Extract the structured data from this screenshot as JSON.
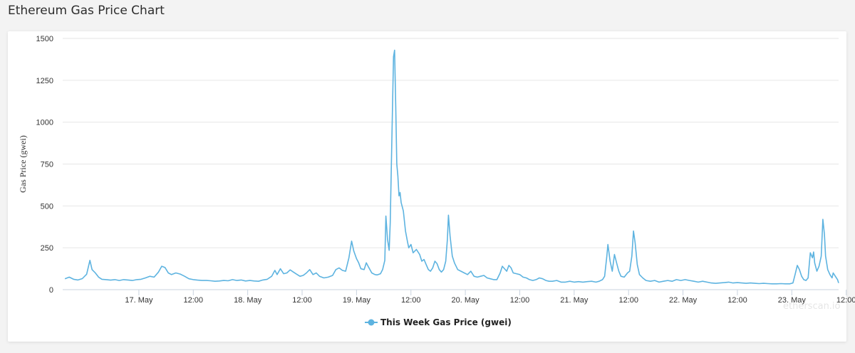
{
  "page": {
    "title": "Ethereum Gas Price Chart"
  },
  "watermark": "etherscan.io",
  "chart_data": {
    "type": "line",
    "title": "Ethereum Gas Price Chart",
    "xlabel": "",
    "ylabel": "Gas Price (gwei)",
    "ylim": [
      0,
      1500
    ],
    "y_ticks": [
      0,
      250,
      500,
      750,
      1000,
      1250,
      1500
    ],
    "x_range_days": [
      16.3,
      23.43
    ],
    "x_ticks": [
      {
        "pos": 17.0,
        "label": "17. May"
      },
      {
        "pos": 17.5,
        "label": "12:00"
      },
      {
        "pos": 18.0,
        "label": "18. May"
      },
      {
        "pos": 18.5,
        "label": "12:00"
      },
      {
        "pos": 19.0,
        "label": "19. May"
      },
      {
        "pos": 19.5,
        "label": "12:00"
      },
      {
        "pos": 20.0,
        "label": "20. May"
      },
      {
        "pos": 20.5,
        "label": "12:00"
      },
      {
        "pos": 21.0,
        "label": "21. May"
      },
      {
        "pos": 21.5,
        "label": "12:00"
      },
      {
        "pos": 22.0,
        "label": "22. May"
      },
      {
        "pos": 22.5,
        "label": "12:00"
      },
      {
        "pos": 23.0,
        "label": "23. May"
      },
      {
        "pos": 23.5,
        "label": "12:00"
      }
    ],
    "grid": "horizontal",
    "legend_position": "bottom-center",
    "series": [
      {
        "name": "This Week Gas Price (gwei)",
        "color": "#5db3e0",
        "points": [
          [
            16.32,
            65
          ],
          [
            16.36,
            75
          ],
          [
            16.4,
            62
          ],
          [
            16.44,
            58
          ],
          [
            16.48,
            66
          ],
          [
            16.52,
            92
          ],
          [
            16.55,
            175
          ],
          [
            16.57,
            120
          ],
          [
            16.6,
            100
          ],
          [
            16.63,
            75
          ],
          [
            16.66,
            62
          ],
          [
            16.7,
            60
          ],
          [
            16.74,
            57
          ],
          [
            16.78,
            60
          ],
          [
            16.82,
            55
          ],
          [
            16.86,
            60
          ],
          [
            16.9,
            58
          ],
          [
            16.94,
            55
          ],
          [
            16.98,
            60
          ],
          [
            17.02,
            62
          ],
          [
            17.06,
            70
          ],
          [
            17.1,
            80
          ],
          [
            17.14,
            75
          ],
          [
            17.18,
            105
          ],
          [
            17.21,
            140
          ],
          [
            17.24,
            132
          ],
          [
            17.27,
            100
          ],
          [
            17.3,
            90
          ],
          [
            17.34,
            100
          ],
          [
            17.38,
            93
          ],
          [
            17.42,
            80
          ],
          [
            17.46,
            65
          ],
          [
            17.5,
            60
          ],
          [
            17.54,
            57
          ],
          [
            17.58,
            55
          ],
          [
            17.62,
            55
          ],
          [
            17.66,
            53
          ],
          [
            17.7,
            50
          ],
          [
            17.74,
            52
          ],
          [
            17.78,
            55
          ],
          [
            17.82,
            53
          ],
          [
            17.86,
            60
          ],
          [
            17.9,
            55
          ],
          [
            17.94,
            58
          ],
          [
            17.98,
            52
          ],
          [
            18.02,
            55
          ],
          [
            18.06,
            52
          ],
          [
            18.1,
            50
          ],
          [
            18.14,
            58
          ],
          [
            18.18,
            62
          ],
          [
            18.22,
            80
          ],
          [
            18.25,
            115
          ],
          [
            18.27,
            90
          ],
          [
            18.3,
            125
          ],
          [
            18.33,
            95
          ],
          [
            18.36,
            100
          ],
          [
            18.39,
            118
          ],
          [
            18.42,
            105
          ],
          [
            18.45,
            92
          ],
          [
            18.48,
            80
          ],
          [
            18.51,
            85
          ],
          [
            18.54,
            100
          ],
          [
            18.57,
            120
          ],
          [
            18.6,
            90
          ],
          [
            18.63,
            100
          ],
          [
            18.66,
            80
          ],
          [
            18.7,
            70
          ],
          [
            18.74,
            75
          ],
          [
            18.78,
            85
          ],
          [
            18.81,
            120
          ],
          [
            18.84,
            130
          ],
          [
            18.87,
            115
          ],
          [
            18.9,
            110
          ],
          [
            18.93,
            190
          ],
          [
            18.955,
            290
          ],
          [
            18.975,
            230
          ],
          [
            19.0,
            185
          ],
          [
            19.02,
            160
          ],
          [
            19.04,
            125
          ],
          [
            19.07,
            120
          ],
          [
            19.09,
            160
          ],
          [
            19.11,
            135
          ],
          [
            19.14,
            100
          ],
          [
            19.17,
            90
          ],
          [
            19.19,
            88
          ],
          [
            19.22,
            95
          ],
          [
            19.24,
            120
          ],
          [
            19.26,
            175
          ],
          [
            19.27,
            440
          ],
          [
            19.285,
            300
          ],
          [
            19.3,
            235
          ],
          [
            19.31,
            400
          ],
          [
            19.325,
            900
          ],
          [
            19.34,
            1390
          ],
          [
            19.35,
            1430
          ],
          [
            19.36,
            1100
          ],
          [
            19.37,
            750
          ],
          [
            19.38,
            680
          ],
          [
            19.39,
            560
          ],
          [
            19.4,
            580
          ],
          [
            19.41,
            520
          ],
          [
            19.43,
            470
          ],
          [
            19.45,
            350
          ],
          [
            19.47,
            280
          ],
          [
            19.48,
            250
          ],
          [
            19.5,
            270
          ],
          [
            19.52,
            220
          ],
          [
            19.55,
            240
          ],
          [
            19.58,
            210
          ],
          [
            19.6,
            170
          ],
          [
            19.62,
            180
          ],
          [
            19.64,
            150
          ],
          [
            19.66,
            120
          ],
          [
            19.68,
            110
          ],
          [
            19.7,
            130
          ],
          [
            19.72,
            170
          ],
          [
            19.74,
            155
          ],
          [
            19.76,
            120
          ],
          [
            19.78,
            105
          ],
          [
            19.8,
            120
          ],
          [
            19.82,
            170
          ],
          [
            19.835,
            300
          ],
          [
            19.845,
            445
          ],
          [
            19.86,
            320
          ],
          [
            19.88,
            200
          ],
          [
            19.9,
            160
          ],
          [
            19.93,
            120
          ],
          [
            19.96,
            110
          ],
          [
            19.99,
            100
          ],
          [
            20.02,
            90
          ],
          [
            20.05,
            110
          ],
          [
            20.08,
            80
          ],
          [
            20.11,
            75
          ],
          [
            20.14,
            80
          ],
          [
            20.17,
            85
          ],
          [
            20.2,
            70
          ],
          [
            20.23,
            65
          ],
          [
            20.26,
            60
          ],
          [
            20.29,
            60
          ],
          [
            20.32,
            100
          ],
          [
            20.34,
            140
          ],
          [
            20.36,
            125
          ],
          [
            20.38,
            110
          ],
          [
            20.4,
            145
          ],
          [
            20.42,
            130
          ],
          [
            20.44,
            100
          ],
          [
            20.47,
            95
          ],
          [
            20.5,
            90
          ],
          [
            20.53,
            75
          ],
          [
            20.56,
            70
          ],
          [
            20.59,
            60
          ],
          [
            20.62,
            55
          ],
          [
            20.65,
            60
          ],
          [
            20.68,
            70
          ],
          [
            20.71,
            65
          ],
          [
            20.74,
            55
          ],
          [
            20.77,
            50
          ],
          [
            20.8,
            50
          ],
          [
            20.84,
            55
          ],
          [
            20.88,
            45
          ],
          [
            20.92,
            45
          ],
          [
            20.96,
            50
          ],
          [
            21.0,
            45
          ],
          [
            21.04,
            48
          ],
          [
            21.08,
            45
          ],
          [
            21.12,
            48
          ],
          [
            21.16,
            50
          ],
          [
            21.2,
            45
          ],
          [
            21.23,
            50
          ],
          [
            21.26,
            60
          ],
          [
            21.28,
            80
          ],
          [
            21.3,
            200
          ],
          [
            21.31,
            270
          ],
          [
            21.33,
            170
          ],
          [
            21.35,
            110
          ],
          [
            21.37,
            210
          ],
          [
            21.39,
            160
          ],
          [
            21.41,
            110
          ],
          [
            21.43,
            80
          ],
          [
            21.46,
            75
          ],
          [
            21.49,
            100
          ],
          [
            21.51,
            110
          ],
          [
            21.53,
            200
          ],
          [
            21.545,
            350
          ],
          [
            21.56,
            280
          ],
          [
            21.58,
            150
          ],
          [
            21.6,
            90
          ],
          [
            21.63,
            70
          ],
          [
            21.66,
            55
          ],
          [
            21.7,
            50
          ],
          [
            21.74,
            55
          ],
          [
            21.78,
            45
          ],
          [
            21.82,
            50
          ],
          [
            21.86,
            55
          ],
          [
            21.9,
            50
          ],
          [
            21.94,
            60
          ],
          [
            21.98,
            55
          ],
          [
            22.02,
            60
          ],
          [
            22.06,
            55
          ],
          [
            22.1,
            50
          ],
          [
            22.14,
            45
          ],
          [
            22.18,
            50
          ],
          [
            22.22,
            45
          ],
          [
            22.26,
            40
          ],
          [
            22.3,
            38
          ],
          [
            22.34,
            40
          ],
          [
            22.38,
            42
          ],
          [
            22.42,
            45
          ],
          [
            22.46,
            40
          ],
          [
            22.5,
            42
          ],
          [
            22.54,
            40
          ],
          [
            22.58,
            38
          ],
          [
            22.62,
            40
          ],
          [
            22.66,
            38
          ],
          [
            22.7,
            36
          ],
          [
            22.74,
            38
          ],
          [
            22.78,
            36
          ],
          [
            22.82,
            35
          ],
          [
            22.86,
            35
          ],
          [
            22.9,
            36
          ],
          [
            22.94,
            35
          ],
          [
            22.98,
            35
          ],
          [
            23.01,
            40
          ],
          [
            23.03,
            90
          ],
          [
            23.05,
            145
          ],
          [
            23.07,
            120
          ],
          [
            23.09,
            80
          ],
          [
            23.11,
            60
          ],
          [
            23.13,
            55
          ],
          [
            23.15,
            70
          ],
          [
            23.16,
            150
          ],
          [
            23.17,
            220
          ],
          [
            23.19,
            190
          ],
          [
            23.2,
            225
          ],
          [
            23.21,
            160
          ],
          [
            23.23,
            110
          ],
          [
            23.25,
            140
          ],
          [
            23.27,
            200
          ],
          [
            23.285,
            420
          ],
          [
            23.3,
            330
          ],
          [
            23.31,
            200
          ],
          [
            23.33,
            120
          ],
          [
            23.35,
            90
          ],
          [
            23.37,
            70
          ],
          [
            23.38,
            100
          ],
          [
            23.4,
            80
          ],
          [
            23.42,
            60
          ],
          [
            23.43,
            40
          ]
        ]
      }
    ]
  }
}
